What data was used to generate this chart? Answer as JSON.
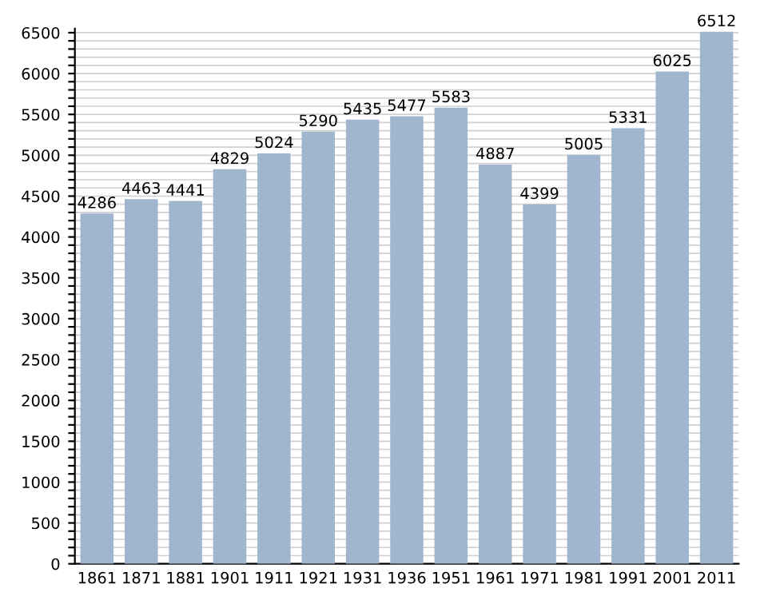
{
  "chart_data": {
    "type": "bar",
    "categories": [
      "1861",
      "1871",
      "1881",
      "1901",
      "1911",
      "1921",
      "1931",
      "1936",
      "1951",
      "1961",
      "1971",
      "1981",
      "1991",
      "2001",
      "2011"
    ],
    "values": [
      4286,
      4463,
      4441,
      4829,
      5024,
      5290,
      5435,
      5477,
      5583,
      4887,
      4399,
      5005,
      5331,
      6025,
      6512
    ],
    "color": "#a0b6cf",
    "data_labels": true,
    "grid": "y",
    "ylim": [
      0,
      6550
    ],
    "yticks": [
      0,
      {
        "value": 100,
        "label": null
      },
      {
        "value": 200,
        "label": null
      },
      {
        "value": 300,
        "label": null
      },
      {
        "value": 400,
        "label": null
      },
      500,
      {
        "value": 600,
        "label": null
      },
      {
        "value": 700,
        "label": null
      },
      {
        "value": 800,
        "label": null
      },
      {
        "value": 900,
        "label": null
      },
      1000,
      {
        "value": 1100,
        "label": null
      },
      {
        "value": 1200,
        "label": null
      },
      {
        "value": 1300,
        "label": null
      },
      {
        "value": 1400,
        "label": null
      },
      1500,
      {
        "value": 1600,
        "label": null
      },
      {
        "value": 1700,
        "label": null
      },
      {
        "value": 1800,
        "label": null
      },
      {
        "value": 1900,
        "label": null
      },
      2000,
      {
        "value": 2100,
        "label": null
      },
      {
        "value": 2200,
        "label": null
      },
      {
        "value": 2300,
        "label": null
      },
      {
        "value": 2400,
        "label": null
      },
      2500,
      {
        "value": 2600,
        "label": null
      },
      {
        "value": 2700,
        "label": null
      },
      {
        "value": 2800,
        "label": null
      },
      {
        "value": 2900,
        "label": null
      },
      3000,
      {
        "value": 3100,
        "label": null
      },
      {
        "value": 3200,
        "label": null
      },
      {
        "value": 3300,
        "label": null
      },
      {
        "value": 3400,
        "label": null
      },
      3500,
      {
        "value": 3600,
        "label": null
      },
      {
        "value": 3700,
        "label": null
      },
      {
        "value": 3800,
        "label": null
      },
      {
        "value": 3900,
        "label": null
      },
      4000,
      {
        "value": 4100,
        "label": null
      },
      {
        "value": 4200,
        "label": null
      },
      {
        "value": 4300,
        "label": null
      },
      {
        "value": 4400,
        "label": null
      },
      4500,
      {
        "value": 4600,
        "label": null
      },
      {
        "value": 4700,
        "label": null
      },
      {
        "value": 4800,
        "label": null
      },
      {
        "value": 4900,
        "label": null
      },
      5000,
      {
        "value": 5100,
        "label": null
      },
      {
        "value": 5200,
        "label": null
      },
      {
        "value": 5300,
        "label": null
      },
      {
        "value": 5400,
        "label": null
      },
      5500,
      {
        "value": 5600,
        "label": null
      },
      {
        "value": 5700,
        "label": null
      },
      {
        "value": 5800,
        "label": null
      },
      {
        "value": 5900,
        "label": null
      },
      6000,
      {
        "value": 6100,
        "label": null
      },
      {
        "value": 6200,
        "label": null
      },
      {
        "value": 6300,
        "label": null
      },
      {
        "value": 6400,
        "label": null
      },
      6500
    ]
  }
}
